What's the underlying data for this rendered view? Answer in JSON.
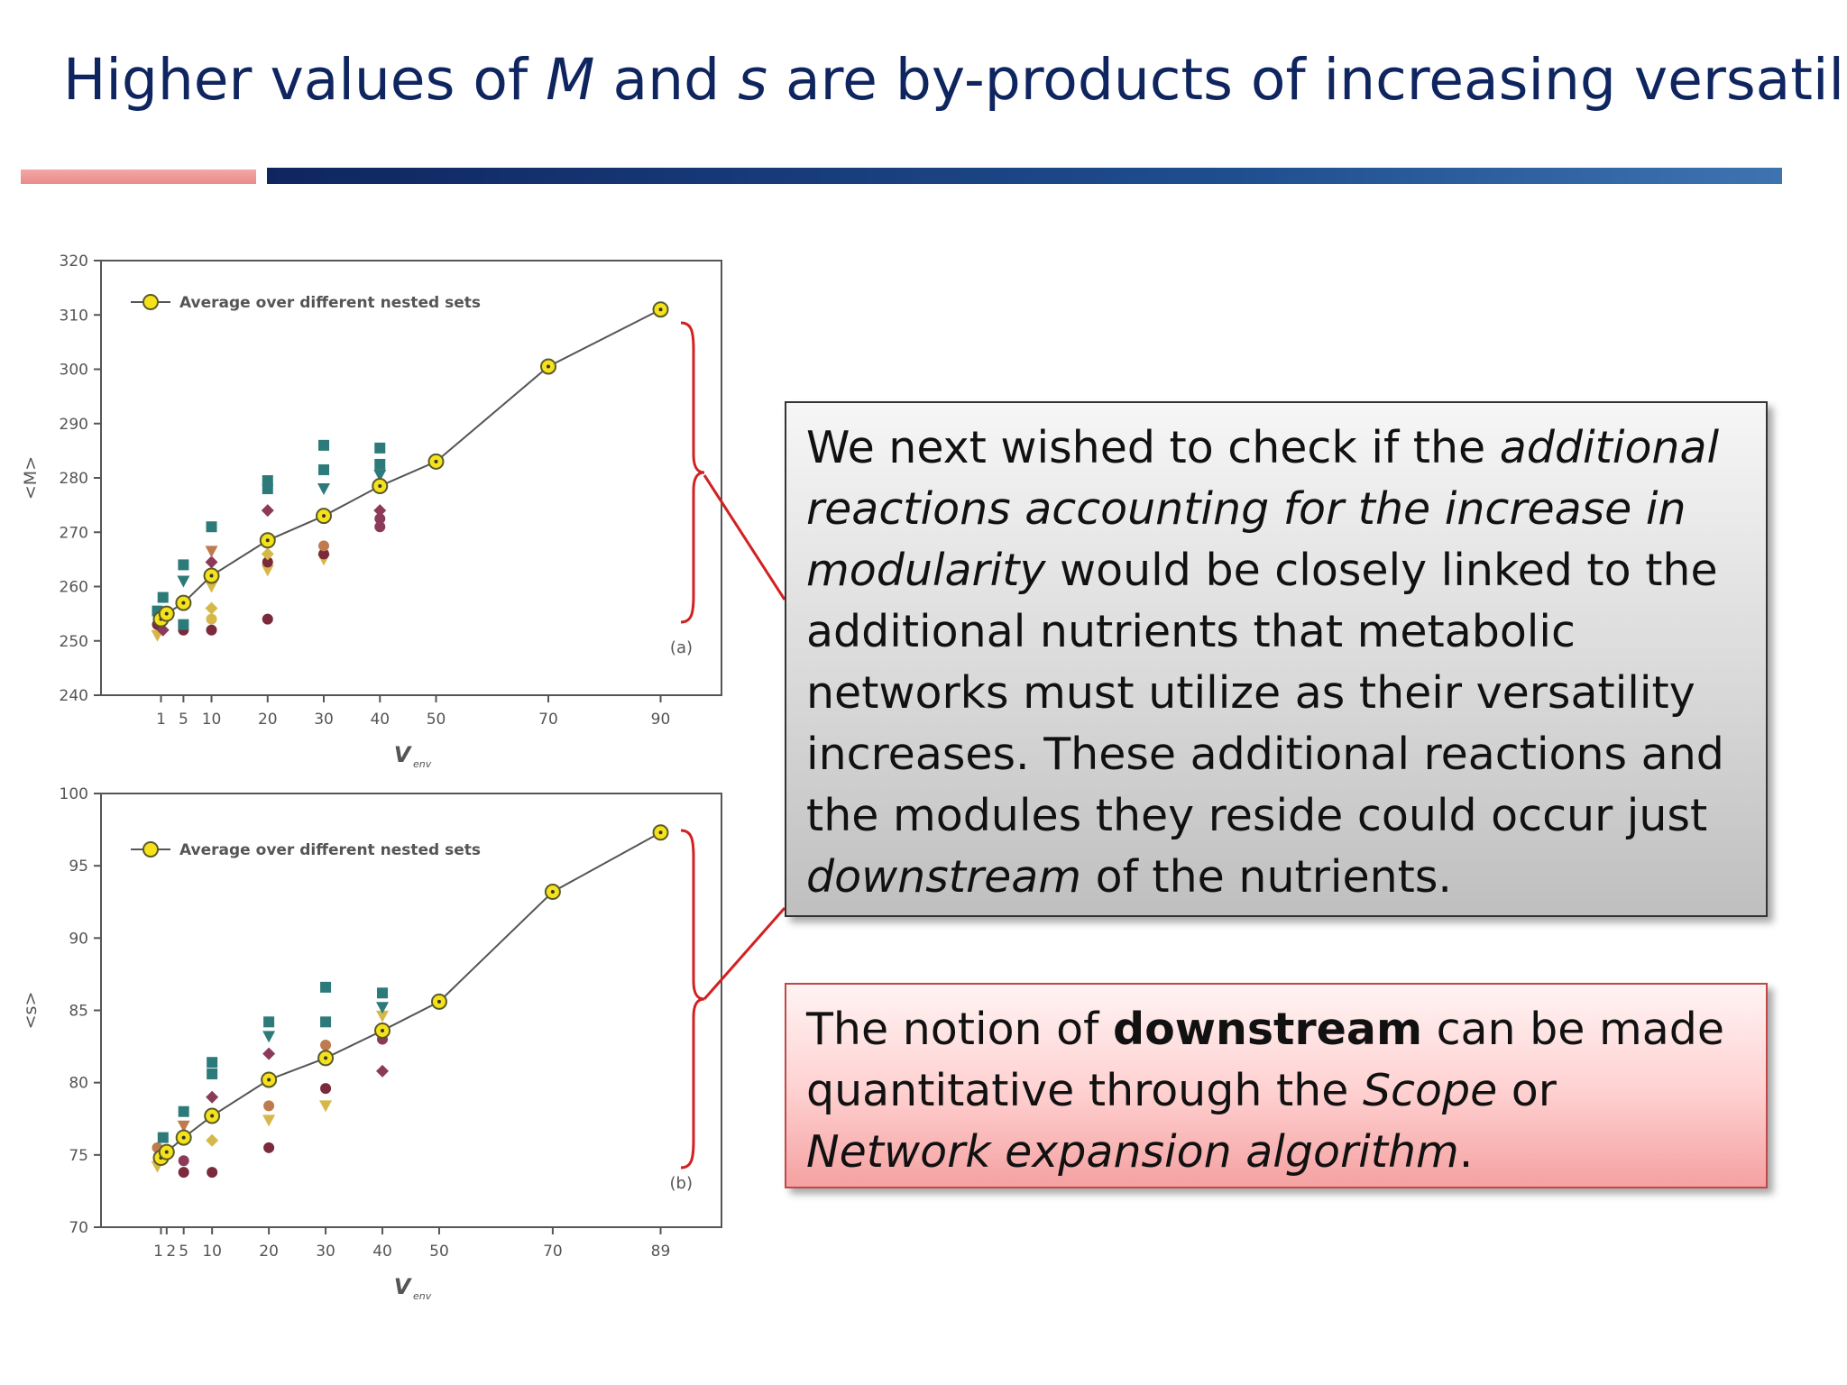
{
  "slide": {
    "title_parts": [
      "Higher values of ",
      "M",
      " and ",
      "s",
      " are by-products of increasing versatility"
    ],
    "colors": {
      "title": "#0f2560",
      "accent_red": "#d32020",
      "rule_pink": "#ef9a9a",
      "rule_blue": "#1f4f90"
    }
  },
  "textbox_main": {
    "segments": [
      {
        "text": "We next wished to check if the ",
        "style": "normal"
      },
      {
        "text": "additional reactions accounting for the increase in modularity",
        "style": "italic"
      },
      {
        "text": " would be closely linked to the additional nutrients that metabolic networks must utilize as their versatility increases. These additional reactions and the modules they reside could occur just ",
        "style": "normal"
      },
      {
        "text": "downstream",
        "style": "italic"
      },
      {
        "text": " of the nutrients.",
        "style": "normal"
      }
    ]
  },
  "textbox_note": {
    "segments": [
      {
        "text": "The notion of ",
        "style": "normal"
      },
      {
        "text": "downstream",
        "style": "bold"
      },
      {
        "text": " can be made quantitative through the ",
        "style": "normal"
      },
      {
        "text": "Scope",
        "style": "italic"
      },
      {
        "text": " or ",
        "style": "normal"
      },
      {
        "text": "Network expansion algorithm",
        "style": "italic"
      },
      {
        "text": ".",
        "style": "normal"
      }
    ]
  },
  "chart_data": [
    {
      "type": "line",
      "panel_label": "(a)",
      "ylabel": "<M>",
      "xlabel": "V",
      "xlabel_sub": "env",
      "legend": "Average over different nested sets",
      "ylim": [
        240,
        320
      ],
      "yticks": [
        240,
        250,
        260,
        270,
        280,
        290,
        300,
        310,
        320
      ],
      "xlim": [
        -7,
        99
      ],
      "xticks": [
        1,
        5,
        10,
        20,
        30,
        40,
        50,
        70,
        90
      ],
      "series": [
        {
          "name": "Average over different nested sets",
          "x": [
            1,
            2,
            5,
            10,
            20,
            30,
            40,
            50,
            70,
            90
          ],
          "y": [
            254,
            255,
            257,
            262,
            268.5,
            273,
            278.5,
            283,
            300.5,
            311
          ]
        }
      ],
      "scatter": [
        {
          "x": 1,
          "y": 251,
          "m": "tri",
          "c": "#d6b84a"
        },
        {
          "x": 1,
          "y": 253,
          "m": "circ",
          "c": "#7a2a3a"
        },
        {
          "x": 1,
          "y": 255.5,
          "m": "sq",
          "c": "#2d7a7a"
        },
        {
          "x": 2,
          "y": 258,
          "m": "sq",
          "c": "#2d7a7a"
        },
        {
          "x": 2,
          "y": 252,
          "m": "dia",
          "c": "#8c3a5a"
        },
        {
          "x": 5,
          "y": 252,
          "m": "circ",
          "c": "#7a2a3a"
        },
        {
          "x": 5,
          "y": 253,
          "m": "sq",
          "c": "#2d7a7a"
        },
        {
          "x": 5,
          "y": 261,
          "m": "tri",
          "c": "#2d7a7a"
        },
        {
          "x": 5,
          "y": 264,
          "m": "sq",
          "c": "#2d7a7a"
        },
        {
          "x": 10,
          "y": 252,
          "m": "circ",
          "c": "#7a2a3a"
        },
        {
          "x": 10,
          "y": 254,
          "m": "circ",
          "c": "#d6b84a"
        },
        {
          "x": 10,
          "y": 256,
          "m": "dia",
          "c": "#d6b84a"
        },
        {
          "x": 10,
          "y": 260,
          "m": "tri",
          "c": "#d6b84a"
        },
        {
          "x": 10,
          "y": 264.5,
          "m": "dia",
          "c": "#8c3a5a"
        },
        {
          "x": 10,
          "y": 266.5,
          "m": "tri",
          "c": "#c07a50"
        },
        {
          "x": 10,
          "y": 271,
          "m": "sq",
          "c": "#2d7a7a"
        },
        {
          "x": 20,
          "y": 254,
          "m": "circ",
          "c": "#7a2a3a"
        },
        {
          "x": 20,
          "y": 263,
          "m": "tri",
          "c": "#d6b84a"
        },
        {
          "x": 20,
          "y": 264.5,
          "m": "circ",
          "c": "#7a2a3a"
        },
        {
          "x": 20,
          "y": 266,
          "m": "dia",
          "c": "#d6b84a"
        },
        {
          "x": 20,
          "y": 274,
          "m": "dia",
          "c": "#8c3a5a"
        },
        {
          "x": 20,
          "y": 278,
          "m": "sq",
          "c": "#2d7a7a"
        },
        {
          "x": 20,
          "y": 279.5,
          "m": "sq",
          "c": "#2d7a7a"
        },
        {
          "x": 30,
          "y": 265,
          "m": "tri",
          "c": "#d6b84a"
        },
        {
          "x": 30,
          "y": 266,
          "m": "circ",
          "c": "#7a2a3a"
        },
        {
          "x": 30,
          "y": 267.5,
          "m": "circ",
          "c": "#c07a50"
        },
        {
          "x": 30,
          "y": 278,
          "m": "tri",
          "c": "#2d7a7a"
        },
        {
          "x": 30,
          "y": 281.5,
          "m": "sq",
          "c": "#2d7a7a"
        },
        {
          "x": 30,
          "y": 286,
          "m": "sq",
          "c": "#2d7a7a"
        },
        {
          "x": 40,
          "y": 271,
          "m": "circ",
          "c": "#8c3a5a"
        },
        {
          "x": 40,
          "y": 272.5,
          "m": "circ",
          "c": "#8c3a5a"
        },
        {
          "x": 40,
          "y": 274,
          "m": "dia",
          "c": "#8c3a5a"
        },
        {
          "x": 40,
          "y": 280.5,
          "m": "tri",
          "c": "#2d7a7a"
        },
        {
          "x": 40,
          "y": 282.5,
          "m": "sq",
          "c": "#2d7a7a"
        },
        {
          "x": 40,
          "y": 285.5,
          "m": "sq",
          "c": "#2d7a7a"
        }
      ]
    },
    {
      "type": "line",
      "panel_label": "(b)",
      "ylabel": "<s>",
      "xlabel": "V",
      "xlabel_sub": "env",
      "legend": "Average over different nested sets",
      "ylim": [
        70,
        100
      ],
      "yticks": [
        70,
        75,
        80,
        85,
        90,
        95,
        100
      ],
      "xlim": [
        -7,
        99
      ],
      "xticks": [
        1,
        2,
        5,
        10,
        20,
        30,
        40,
        50,
        70,
        89
      ],
      "xtick_labels": [
        "1",
        "2",
        "5",
        "10",
        "20",
        "30",
        "40",
        "50",
        "70",
        "89"
      ],
      "series": [
        {
          "name": "Average over different nested sets",
          "x": [
            1,
            2,
            5,
            10,
            20,
            30,
            40,
            50,
            70,
            89
          ],
          "y": [
            74.8,
            75.2,
            76.2,
            77.7,
            80.2,
            81.7,
            83.6,
            85.6,
            93.2,
            97.3
          ]
        }
      ],
      "scatter": [
        {
          "x": 1,
          "y": 74.2,
          "m": "tri",
          "c": "#d6b84a"
        },
        {
          "x": 1,
          "y": 75.5,
          "m": "circ",
          "c": "#c07a50"
        },
        {
          "x": 2,
          "y": 76.2,
          "m": "sq",
          "c": "#2d7a7a"
        },
        {
          "x": 5,
          "y": 73.8,
          "m": "circ",
          "c": "#7a2a3a"
        },
        {
          "x": 5,
          "y": 74.6,
          "m": "circ",
          "c": "#8c3a5a"
        },
        {
          "x": 5,
          "y": 77.0,
          "m": "tri",
          "c": "#c07a50"
        },
        {
          "x": 5,
          "y": 78.0,
          "m": "sq",
          "c": "#2d7a7a"
        },
        {
          "x": 10,
          "y": 73.8,
          "m": "circ",
          "c": "#7a2a3a"
        },
        {
          "x": 10,
          "y": 76.0,
          "m": "dia",
          "c": "#d6b84a"
        },
        {
          "x": 10,
          "y": 79.0,
          "m": "dia",
          "c": "#8c3a5a"
        },
        {
          "x": 10,
          "y": 80.6,
          "m": "sq",
          "c": "#2d7a7a"
        },
        {
          "x": 10,
          "y": 81.4,
          "m": "sq",
          "c": "#2d7a7a"
        },
        {
          "x": 20,
          "y": 75.5,
          "m": "circ",
          "c": "#7a2a3a"
        },
        {
          "x": 20,
          "y": 77.4,
          "m": "tri",
          "c": "#d6b84a"
        },
        {
          "x": 20,
          "y": 78.4,
          "m": "circ",
          "c": "#c07a50"
        },
        {
          "x": 20,
          "y": 82.0,
          "m": "dia",
          "c": "#8c3a5a"
        },
        {
          "x": 20,
          "y": 83.2,
          "m": "tri",
          "c": "#2d7a7a"
        },
        {
          "x": 20,
          "y": 84.2,
          "m": "sq",
          "c": "#2d7a7a"
        },
        {
          "x": 30,
          "y": 78.4,
          "m": "tri",
          "c": "#d6b84a"
        },
        {
          "x": 30,
          "y": 79.6,
          "m": "circ",
          "c": "#7a2a3a"
        },
        {
          "x": 30,
          "y": 82.6,
          "m": "circ",
          "c": "#c07a50"
        },
        {
          "x": 30,
          "y": 84.2,
          "m": "sq",
          "c": "#2d7a7a"
        },
        {
          "x": 30,
          "y": 86.6,
          "m": "sq",
          "c": "#2d7a7a"
        },
        {
          "x": 40,
          "y": 80.8,
          "m": "dia",
          "c": "#8c3a5a"
        },
        {
          "x": 40,
          "y": 83.0,
          "m": "circ",
          "c": "#8c3a5a"
        },
        {
          "x": 40,
          "y": 84.6,
          "m": "tri",
          "c": "#d6b84a"
        },
        {
          "x": 40,
          "y": 85.2,
          "m": "tri",
          "c": "#2d7a7a"
        },
        {
          "x": 40,
          "y": 86.2,
          "m": "sq",
          "c": "#2d7a7a"
        }
      ]
    }
  ]
}
